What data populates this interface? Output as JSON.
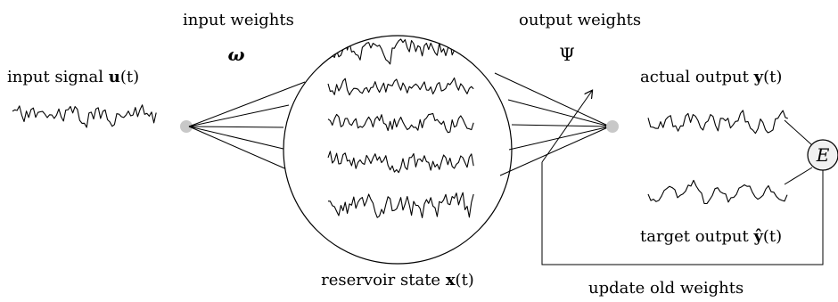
{
  "labels": {
    "input_weights": "input weights",
    "omega": "ω",
    "output_weights": "output weights",
    "psi": "Ψ",
    "input_signal": "input signal ",
    "input_signal_var": "u",
    "input_signal_arg": "(t)",
    "actual_output": "actual output ",
    "actual_output_var": "y",
    "actual_output_arg": "(t)",
    "target_output": "target output ",
    "target_output_var": "ŷ",
    "target_output_arg": "(t)",
    "reservoir_state": "reservoir state ",
    "reservoir_state_var": "x",
    "reservoir_state_arg": "(t)",
    "error": "E",
    "update": "update old weights"
  },
  "colors": {
    "node": "#c8c8c8",
    "error_node": "#f0f0f0",
    "line": "#000000"
  }
}
